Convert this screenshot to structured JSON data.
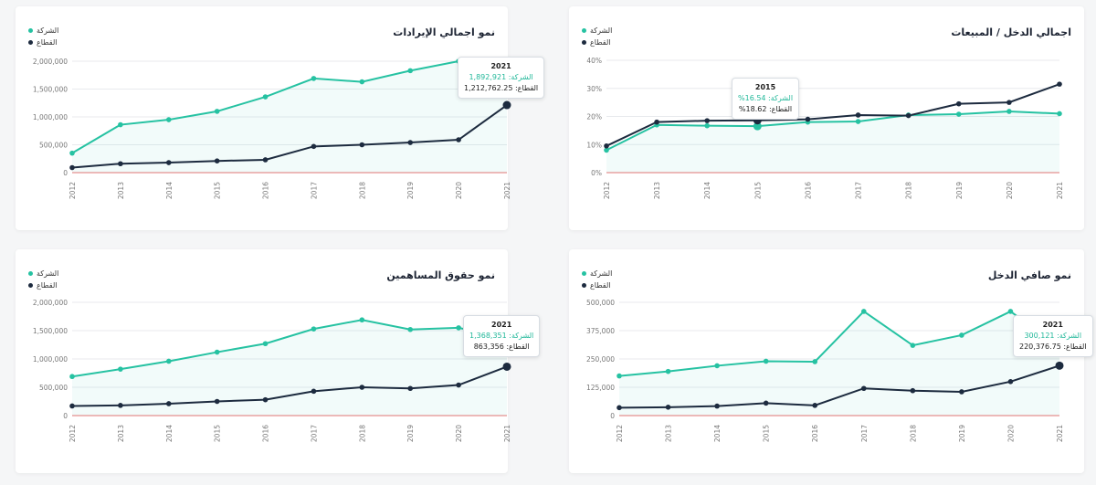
{
  "colors": {
    "company": "#26c2a2",
    "sector": "#1d2b3f",
    "baseline": "#e57373",
    "grid": "#e8eaed"
  },
  "legend": {
    "company": "الشركة",
    "sector": "القطاع"
  },
  "charts": [
    {
      "id": "revenue",
      "title": "نمو اجمالي الإيرادات",
      "tooltip": {
        "title": "2021",
        "company": "الشركة: 1,892,921",
        "sector": "القطاع: 1,212,762.25"
      }
    },
    {
      "id": "income-ratio",
      "title": "اجمالي الدخل / المبيعات",
      "tooltip": {
        "title": "2015",
        "company": "الشركة: 16.54%",
        "sector": "القطاع: 18.62%"
      }
    },
    {
      "id": "equity",
      "title": "نمو حقوق المساهمين",
      "tooltip": {
        "title": "2021",
        "company": "الشركة: 1,368,351",
        "sector": "القطاع: 863,356"
      }
    },
    {
      "id": "net-income",
      "title": "نمو صافي الدخل",
      "tooltip": {
        "title": "2021",
        "company": "الشركة: 300,121",
        "sector": "القطاع: 220,376.75"
      }
    }
  ],
  "chart_data": [
    {
      "type": "line",
      "title": "نمو اجمالي الإيرادات",
      "x": [
        "2012",
        "2013",
        "2014",
        "2015",
        "2016",
        "2017",
        "2018",
        "2019",
        "2020",
        "2021"
      ],
      "yticks": [
        "0",
        "500,000",
        "1,000,000",
        "1,500,000",
        "2,000,000"
      ],
      "ylim": [
        0,
        2000000
      ],
      "series": [
        {
          "name": "الشركة",
          "values": [
            350000,
            860000,
            950000,
            1100000,
            1360000,
            1690000,
            1630000,
            1830000,
            2000000,
            1892921
          ]
        },
        {
          "name": "القطاع",
          "values": [
            90000,
            160000,
            180000,
            210000,
            230000,
            470000,
            500000,
            540000,
            590000,
            1212762.25
          ]
        }
      ],
      "highlight_index": 9
    },
    {
      "type": "line",
      "title": "اجمالي الدخل / المبيعات",
      "x": [
        "2012",
        "2013",
        "2014",
        "2015",
        "2016",
        "2017",
        "2018",
        "2019",
        "2020",
        "2021"
      ],
      "yticks": [
        "0%",
        "10%",
        "20%",
        "30%",
        "40%"
      ],
      "ylim": [
        0,
        40
      ],
      "series": [
        {
          "name": "الشركة",
          "values": [
            8,
            17,
            16.7,
            16.54,
            18,
            18.2,
            20.5,
            20.8,
            21.8,
            21
          ]
        },
        {
          "name": "القطاع",
          "values": [
            9.5,
            18,
            18.5,
            18.62,
            19,
            20.5,
            20.3,
            24.5,
            25,
            31.5
          ]
        }
      ],
      "highlight_index": 3
    },
    {
      "type": "line",
      "title": "نمو حقوق المساهمين",
      "x": [
        "2012",
        "2013",
        "2014",
        "2015",
        "2016",
        "2017",
        "2018",
        "2019",
        "2020",
        "2021"
      ],
      "yticks": [
        "0",
        "500,000",
        "1,000,000",
        "1,500,000",
        "2,000,000"
      ],
      "ylim": [
        0,
        2000000
      ],
      "series": [
        {
          "name": "الشركة",
          "values": [
            690000,
            820000,
            960000,
            1120000,
            1270000,
            1530000,
            1690000,
            1520000,
            1550000,
            1368351
          ]
        },
        {
          "name": "القطاع",
          "values": [
            170000,
            180000,
            210000,
            250000,
            280000,
            430000,
            500000,
            480000,
            540000,
            863356
          ]
        }
      ],
      "highlight_index": 9
    },
    {
      "type": "line",
      "title": "نمو صافي الدخل",
      "x": [
        "2012",
        "2013",
        "2014",
        "2015",
        "2016",
        "2017",
        "2018",
        "2019",
        "2020",
        "2021"
      ],
      "yticks": [
        "0",
        "125,000",
        "250,000",
        "375,000",
        "500,000"
      ],
      "ylim": [
        0,
        500000
      ],
      "series": [
        {
          "name": "الشركة",
          "values": [
            175000,
            195000,
            220000,
            240000,
            238000,
            460000,
            310000,
            355000,
            460000,
            300121
          ]
        },
        {
          "name": "القطاع",
          "values": [
            35000,
            37000,
            42000,
            55000,
            45000,
            120000,
            110000,
            105000,
            150000,
            220376.75
          ]
        }
      ],
      "highlight_index": 9
    }
  ]
}
